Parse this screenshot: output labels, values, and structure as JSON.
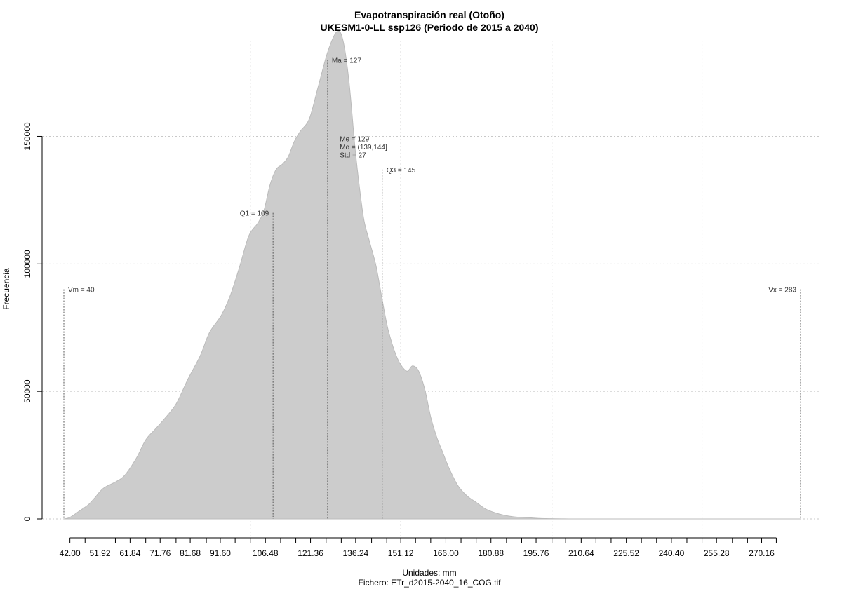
{
  "chart_data": {
    "type": "area",
    "title": "Evapotranspiración real (Otoño)",
    "subtitle": "UKESM1-0-LL ssp126 (Periodo de 2015 a 2040)",
    "xlabel": "Unidades: mm",
    "ylabel": "Frecuencia",
    "footer": "Fichero: ETr_d2015-2040_16_COG.tif",
    "xlim": [
      40,
      283
    ],
    "ylim": [
      0,
      190000
    ],
    "x_ticks": [
      42.0,
      51.92,
      61.84,
      71.76,
      81.68,
      91.6,
      106.48,
      121.36,
      136.24,
      151.12,
      166.0,
      180.88,
      195.76,
      210.64,
      225.52,
      240.4,
      255.28,
      270.16
    ],
    "x_tick_labels": [
      "42.00",
      "51.92",
      "61.84",
      "71.76",
      "81.68",
      "91.60",
      "106.48",
      "121.36",
      "136.24",
      "151.12",
      "166.00",
      "180.88",
      "195.76",
      "210.64",
      "225.52",
      "240.40",
      "255.28",
      "270.16"
    ],
    "x_minor_ticks": [
      47.0,
      57.0,
      67.0,
      77.0,
      87.0,
      96.5,
      101.5,
      111.5,
      116.5,
      126.5,
      131.5,
      141.5,
      146.5,
      156.0,
      161.0,
      171.0,
      176.0,
      186.0,
      191.0,
      201.0,
      205.5,
      215.5,
      220.5,
      230.5,
      235.5,
      245.5,
      250.5,
      260.5,
      265.5,
      275.0
    ],
    "y_ticks": [
      0,
      50000,
      100000,
      150000
    ],
    "y_tick_labels": [
      "0",
      "50000",
      "100000",
      "150000"
    ],
    "x_grid": [
      51.92,
      101.5,
      151.12,
      201.0,
      250.5
    ],
    "y_grid": [
      0,
      50000,
      100000,
      150000
    ],
    "grid": true,
    "fill_color": "#cccccc",
    "outline_color": "#bbbbbb",
    "density": {
      "x": [
        40,
        42,
        45,
        48,
        50,
        53,
        57,
        60,
        64,
        67,
        70,
        73,
        77,
        81,
        85,
        88,
        92,
        95,
        98,
        101,
        104,
        106,
        108,
        110,
        112,
        114,
        116,
        118,
        121,
        124,
        127,
        130,
        132,
        134,
        136,
        137.5,
        139,
        141,
        143,
        145,
        147,
        150,
        153,
        155,
        157,
        159,
        161,
        163,
        165,
        167,
        170,
        173,
        176,
        179,
        182,
        185,
        188,
        191,
        194,
        197,
        200,
        205,
        210,
        220,
        240,
        260,
        283
      ],
      "y": [
        0,
        600,
        3000,
        5500,
        8000,
        12000,
        14500,
        17000,
        24000,
        31000,
        35000,
        39000,
        45000,
        55000,
        64000,
        73000,
        80000,
        88000,
        99000,
        111000,
        116000,
        121000,
        131000,
        137000,
        139000,
        142000,
        148000,
        152000,
        157000,
        170000,
        183000,
        191000,
        188000,
        172000,
        146000,
        130000,
        117000,
        108000,
        99000,
        86000,
        74000,
        63000,
        58000,
        60000,
        58000,
        51000,
        40000,
        32000,
        26000,
        20000,
        13000,
        9000,
        6500,
        4000,
        2500,
        1500,
        900,
        600,
        400,
        200,
        100,
        20,
        0,
        0,
        0,
        0,
        0
      ]
    },
    "annotations": [
      {
        "label": "Vm = 40",
        "x": 40,
        "line_top": 90000,
        "label_y": 90000,
        "anchor": "start"
      },
      {
        "label": "Q1 = 109",
        "x": 109,
        "line_top": 120000,
        "label_y": 120000,
        "anchor": "end"
      },
      {
        "label": "Ma = 127",
        "x": 127,
        "line_top": 180000,
        "label_y": 180000,
        "anchor": "start"
      },
      {
        "label": "Q3 = 145",
        "x": 145,
        "line_top": 137000,
        "label_y": 137000,
        "anchor": "start"
      },
      {
        "label": "Vx = 283",
        "x": 283,
        "line_top": 90000,
        "label_y": 90000,
        "anchor": "end"
      }
    ],
    "stats_box": {
      "x": 131,
      "y_top": 148000,
      "lines": [
        "Me = 129",
        "Mo = (139,144]",
        "Std = 27"
      ]
    }
  }
}
